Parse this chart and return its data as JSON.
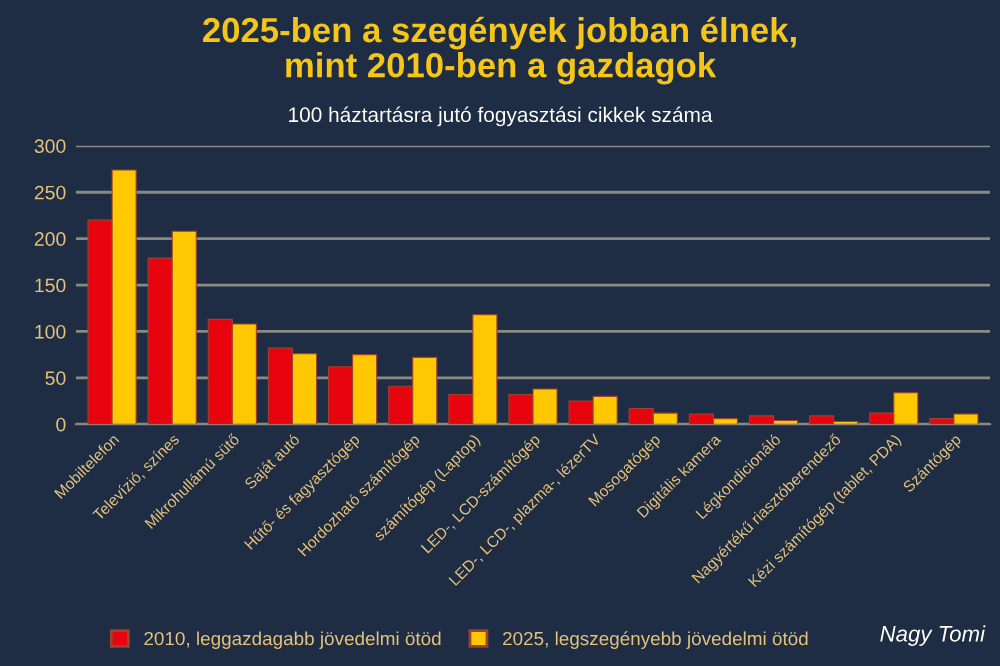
{
  "chart_data": {
    "type": "bar",
    "title": "2025-ben a szegények jobban élnek,\nmint 2010-ben a gazdagok",
    "subtitle": "100 háztartásra jutó fogyasztási cikkek száma",
    "categories": [
      "Mobiltelefon",
      "Televízió, színes",
      "Mikrohullámú sütő",
      "Saját autó",
      "Hűtő- és fagyasztógép",
      "Hordozható számítógép",
      "számítógép (Laptop)",
      "LED-, LCD-számítógép",
      "LED-, LCD-, plazma-, lézerTV",
      "Mosogatógép",
      "Digitális kamera",
      "Légkondicionáló",
      "Nagyértékű riasztóberendező",
      "Kézi számítógép (tablet, PDA)",
      "Szántógép"
    ],
    "series": [
      {
        "name": "2010, leggazdagabb jövedelmi ötöd",
        "color": "#e8040e",
        "values": [
          220,
          179,
          113,
          82,
          62,
          41,
          32,
          32,
          25,
          17,
          11,
          9,
          9,
          12,
          6
        ]
      },
      {
        "name": "2025, legszegényebb jövedelmi ötöd",
        "color": "#ffc800",
        "values": [
          274,
          208,
          108,
          76,
          75,
          72,
          118,
          38,
          30,
          12,
          6,
          4,
          3,
          34,
          11
        ]
      }
    ],
    "ylim": [
      0,
      300
    ],
    "yticks": [
      0,
      50,
      100,
      150,
      200,
      250,
      300
    ],
    "grid": "y",
    "legend": "bottom",
    "annotations": [
      "Nagy Tomi"
    ]
  }
}
